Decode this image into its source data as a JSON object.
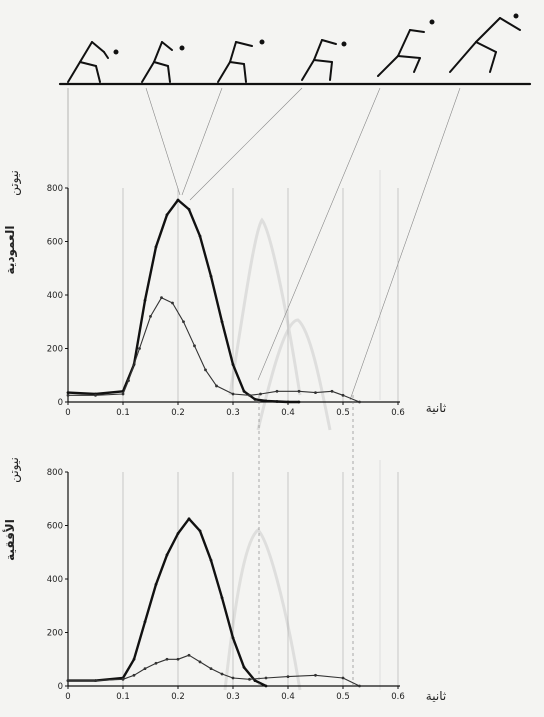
{
  "chart_data": [
    {
      "type": "line",
      "ylabel_unit": "نيوتن",
      "ylabel": "العمودية",
      "xlabel": "ثانية",
      "xlim": [
        0,
        0.6
      ],
      "ylim": [
        0,
        800
      ],
      "x_ticks": [
        "0",
        "0.1",
        "0.2",
        "0.3",
        "0.4",
        "0.5",
        "0.6"
      ],
      "y_ticks": [
        "0",
        "200",
        "400",
        "600",
        "800"
      ],
      "series": [
        {
          "style": "bold",
          "color": "#111111",
          "x": [
            0,
            0.05,
            0.1,
            0.12,
            0.14,
            0.16,
            0.18,
            0.2,
            0.22,
            0.24,
            0.26,
            0.28,
            0.3,
            0.32,
            0.34,
            0.36,
            0.38,
            0.4,
            0.42
          ],
          "y": [
            35,
            30,
            40,
            140,
            380,
            580,
            700,
            755,
            720,
            620,
            470,
            300,
            140,
            40,
            10,
            4,
            2,
            0,
            0
          ]
        },
        {
          "style": "thin",
          "color": "#333333",
          "x": [
            0,
            0.05,
            0.1,
            0.11,
            0.13,
            0.15,
            0.17,
            0.19,
            0.21,
            0.23,
            0.25,
            0.27,
            0.3,
            0.33,
            0.35,
            0.38,
            0.42,
            0.45,
            0.48,
            0.5,
            0.53
          ],
          "y": [
            25,
            25,
            30,
            80,
            200,
            320,
            390,
            370,
            300,
            210,
            120,
            60,
            30,
            25,
            30,
            40,
            40,
            35,
            40,
            25,
            0
          ]
        }
      ]
    },
    {
      "type": "line",
      "ylabel_unit": "نيوتن",
      "ylabel": "الأفقية",
      "xlabel": "ثانية",
      "xlim": [
        0,
        0.6
      ],
      "ylim": [
        0,
        800
      ],
      "x_ticks": [
        "0",
        "0.1",
        "0.2",
        "0.3",
        "0.4",
        "0.5",
        "0.6"
      ],
      "y_ticks": [
        "0",
        "200",
        "400",
        "600",
        "800"
      ],
      "series": [
        {
          "style": "bold",
          "color": "#111111",
          "x": [
            0,
            0.05,
            0.1,
            0.12,
            0.14,
            0.16,
            0.18,
            0.2,
            0.22,
            0.24,
            0.26,
            0.28,
            0.3,
            0.32,
            0.34,
            0.36
          ],
          "y": [
            20,
            20,
            30,
            100,
            240,
            380,
            490,
            570,
            625,
            580,
            470,
            330,
            180,
            70,
            20,
            0
          ]
        },
        {
          "style": "thin",
          "color": "#333333",
          "x": [
            0,
            0.05,
            0.1,
            0.12,
            0.14,
            0.16,
            0.18,
            0.2,
            0.22,
            0.24,
            0.26,
            0.28,
            0.3,
            0.33,
            0.36,
            0.4,
            0.45,
            0.5,
            0.53
          ],
          "y": [
            20,
            20,
            25,
            40,
            65,
            85,
            100,
            100,
            115,
            90,
            65,
            45,
            30,
            25,
            30,
            35,
            40,
            30,
            0
          ]
        }
      ]
    }
  ]
}
